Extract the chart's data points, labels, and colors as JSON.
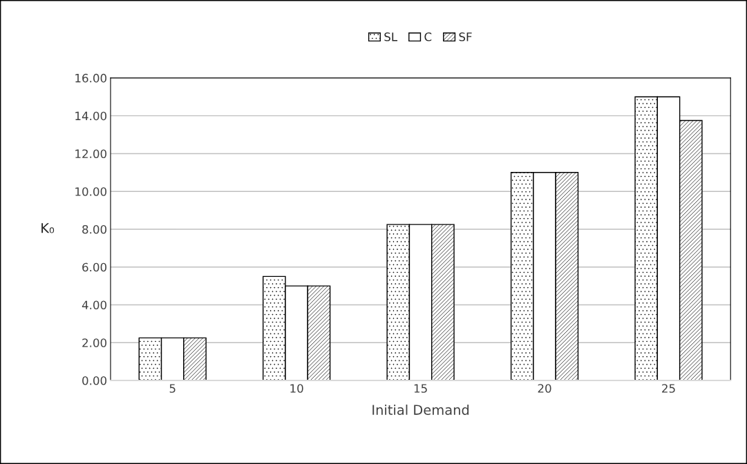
{
  "chart_data": {
    "type": "bar",
    "xlabel": "Initial Demand",
    "ylabel": "K₀",
    "categories": [
      "5",
      "10",
      "15",
      "20",
      "25"
    ],
    "series": [
      {
        "name": "SL",
        "color": "#ffffff",
        "values": [
          2.25,
          5.5,
          8.25,
          11,
          15
        ]
      },
      {
        "name": "C",
        "color": "#ffffff",
        "values": [
          2.25,
          5,
          8.25,
          11,
          15
        ]
      },
      {
        "name": "SF",
        "color": "#ffffff",
        "values": [
          2.25,
          5,
          8.25,
          11,
          13.75
        ]
      }
    ],
    "ylim": [
      0,
      16
    ],
    "yticks": [
      {
        "value": 0,
        "label": "0.00"
      },
      {
        "value": 2,
        "label": "2.00"
      },
      {
        "value": 4,
        "label": "4.00"
      },
      {
        "value": 6,
        "label": "6.00"
      },
      {
        "value": 8,
        "label": "8.00"
      },
      {
        "value": 10,
        "label": "10.00"
      },
      {
        "value": 12,
        "label": "12.00"
      },
      {
        "value": 14,
        "label": "14.00"
      },
      {
        "value": 16,
        "label": "16.00"
      }
    ],
    "grid": "y",
    "legend": "top"
  }
}
